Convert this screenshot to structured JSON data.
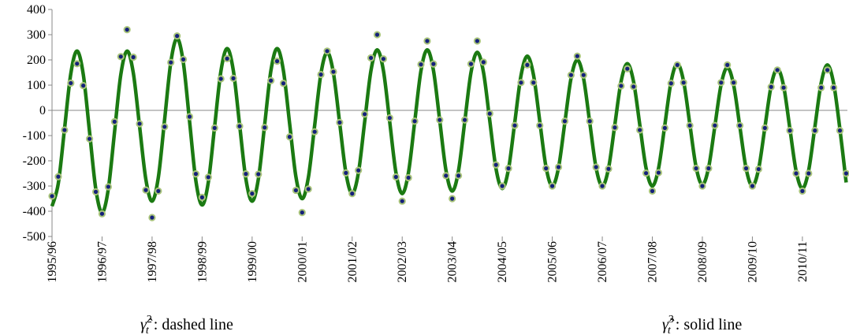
{
  "chart_data": {
    "type": "line",
    "x": [
      1995,
      1995.125,
      1995.25,
      1995.375,
      1995.5,
      1995.625,
      1995.75,
      1995.875,
      1996,
      1996.125,
      1996.25,
      1996.375,
      1996.5,
      1996.625,
      1996.75,
      1996.875,
      1997,
      1997.125,
      1997.25,
      1997.375,
      1997.5,
      1997.625,
      1997.75,
      1997.875,
      1998,
      1998.125,
      1998.25,
      1998.375,
      1998.5,
      1998.625,
      1998.75,
      1998.875,
      1999,
      1999.125,
      1999.25,
      1999.375,
      1999.5,
      1999.625,
      1999.75,
      1999.875,
      2000,
      2000.125,
      2000.25,
      2000.375,
      2000.5,
      2000.625,
      2000.75,
      2000.875,
      2001,
      2001.125,
      2001.25,
      2001.375,
      2001.5,
      2001.625,
      2001.75,
      2001.875,
      2002,
      2002.125,
      2002.25,
      2002.375,
      2002.5,
      2002.625,
      2002.75,
      2002.875,
      2003,
      2003.125,
      2003.25,
      2003.375,
      2003.5,
      2003.625,
      2003.75,
      2003.875,
      2004,
      2004.125,
      2004.25,
      2004.375,
      2004.5,
      2004.625,
      2004.75,
      2004.875,
      2005,
      2005.125,
      2005.25,
      2005.375,
      2005.5,
      2005.625,
      2005.75,
      2005.875,
      2006,
      2006.125,
      2006.25,
      2006.375,
      2006.5,
      2006.625,
      2006.75,
      2006.875,
      2007,
      2007.125,
      2007.25,
      2007.375,
      2007.5,
      2007.625,
      2007.75,
      2007.875,
      2008,
      2008.125,
      2008.25,
      2008.375,
      2008.5,
      2008.625,
      2008.75,
      2008.875,
      2009,
      2009.125,
      2009.25,
      2009.375,
      2009.5,
      2009.625,
      2009.75,
      2009.875,
      2010,
      2010.125,
      2010.25,
      2010.375,
      2010.5,
      2010.625,
      2010.75,
      2010.875
    ],
    "series": [
      {
        "color": "#1b7a12",
        "style": "solid",
        "values": [
          -380,
          -290,
          -73,
          145,
          235,
          142,
          -85,
          -312,
          -405,
          -312,
          -85,
          142,
          235,
          148,
          -63,
          -273,
          -360,
          -266,
          -38,
          191,
          285,
          189,
          -45,
          -279,
          -375,
          -284,
          -65,
          154,
          245,
          157,
          -58,
          -272,
          -360,
          -272,
          -58,
          157,
          245,
          158,
          -53,
          -263,
          -350,
          -265,
          -60,
          145,
          230,
          148,
          -50,
          -248,
          -330,
          -247,
          -45,
          157,
          240,
          157,
          -45,
          -247,
          -330,
          -247,
          -45,
          157,
          240,
          158,
          -40,
          -238,
          -320,
          -240,
          -45,
          150,
          230,
          151,
          -40,
          -231,
          -310,
          -233,
          -48,
          138,
          215,
          140,
          -43,
          -225,
          -300,
          -227,
          -50,
          127,
          200,
          127,
          -50,
          -227,
          -300,
          -229,
          -58,
          114,
          185,
          114,
          -58,
          -229,
          -300,
          -229,
          -58,
          114,
          185,
          115,
          -55,
          -225,
          -295,
          -227,
          -63,
          102,
          170,
          101,
          -65,
          -231,
          -300,
          -232,
          -68,
          97,
          165,
          96,
          -73,
          -241,
          -310,
          -238,
          -65,
          108,
          180,
          106,
          -75,
          -286
        ]
      },
      {
        "color": "#14207a",
        "edge_color": "#a9c47b",
        "style": "dots",
        "values": [
          -340,
          -263,
          -78,
          108,
          185,
          98,
          -113,
          -323,
          -410,
          -303,
          -45,
          213,
          320,
          211,
          -53,
          -316,
          -425,
          -320,
          -65,
          190,
          295,
          202,
          -25,
          -252,
          -345,
          -265,
          -70,
          125,
          205,
          127,
          -63,
          -252,
          -330,
          -253,
          -68,
          118,
          195,
          107,
          -105,
          -317,
          -405,
          -312,
          -85,
          142,
          235,
          153,
          -48,
          -248,
          -330,
          -238,
          -15,
          208,
          300,
          204,
          -30,
          -264,
          -360,
          -267,
          -43,
          182,
          275,
          184,
          -38,
          -259,
          -350,
          -259,
          -38,
          184,
          275,
          191,
          -13,
          -216,
          -300,
          -230,
          -60,
          110,
          180,
          110,
          -60,
          -230,
          -300,
          -225,
          -43,
          140,
          215,
          140,
          -43,
          -225,
          -300,
          -232,
          -68,
          97,
          165,
          94,
          -78,
          -249,
          -320,
          -247,
          -70,
          107,
          180,
          110,
          -60,
          -230,
          -300,
          -230,
          -60,
          110,
          180,
          110,
          -60,
          -230,
          -300,
          -233,
          -70,
          93,
          160,
          90,
          -80,
          -250,
          -320,
          -250,
          -80,
          90,
          160,
          90,
          -80,
          -250
        ]
      }
    ],
    "xlim": [
      1995,
      2010.9
    ],
    "xticks": [
      {
        "value": 1995,
        "label": "1995/96"
      },
      {
        "value": 1996,
        "label": "1996/97"
      },
      {
        "value": 1997,
        "label": "1997/98"
      },
      {
        "value": 1998,
        "label": "1998/99"
      },
      {
        "value": 1999,
        "label": "1999/00"
      },
      {
        "value": 2000,
        "label": "2000/01"
      },
      {
        "value": 2001,
        "label": "2001/02"
      },
      {
        "value": 2002,
        "label": "2002/03"
      },
      {
        "value": 2003,
        "label": "2003/04"
      },
      {
        "value": 2004,
        "label": "2004/05"
      },
      {
        "value": 2005,
        "label": "2005/06"
      },
      {
        "value": 2006,
        "label": "2006/07"
      },
      {
        "value": 2007,
        "label": "2007/08"
      },
      {
        "value": 2008,
        "label": "2008/09"
      },
      {
        "value": 2009,
        "label": "2009/10"
      },
      {
        "value": 2010,
        "label": "2010/11"
      }
    ],
    "ylim": [
      -500,
      400
    ],
    "yticks": [
      -500,
      -400,
      -300,
      -200,
      -100,
      0,
      100,
      200,
      300,
      400
    ],
    "annotations": [
      {
        "symbol": "γ̂",
        "subscript": "t",
        "superscript": "2",
        "text": ": dashed line"
      },
      {
        "symbol": "γ̂",
        "subscript": "t",
        "superscript": "3",
        "text": ": solid line"
      }
    ]
  }
}
